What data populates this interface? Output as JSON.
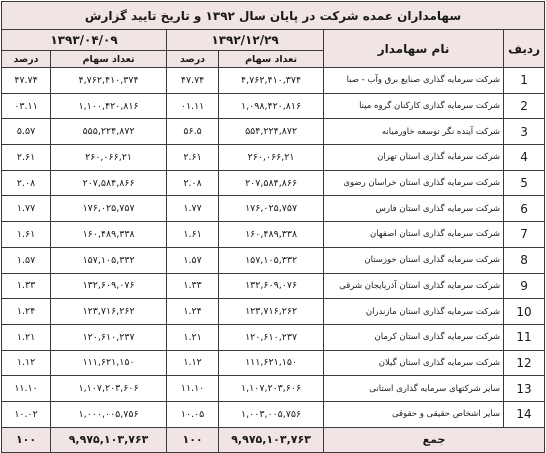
{
  "title": "سهامداران عمده شرکت در پایان سال ۱۳۹۲ و تاریخ تایید گزارش",
  "headers": {
    "row_no": "ردیف",
    "shareholder_name": "نام سهامدار",
    "date1": "۱۳۹۲/۱۲/۲۹",
    "date2": "۱۳۹۳/۰۴/۰۹",
    "shares": "تعداد سهام",
    "percent": "درصد"
  },
  "rows": [
    {
      "no": "1",
      "name": "شرکت سرمایه گذاری صنایع برق وآب - صبا",
      "shares1": "۴,۷۶۲,۴۱۰,۳۷۴",
      "pct1": "۴۷.۷۴",
      "shares2": "۴,۷۶۲,۴۱۰,۳۷۴",
      "pct2": "۴۷.۷۴"
    },
    {
      "no": "2",
      "name": "شرکت سرمایه گذاری کارکنان گروه مپنا",
      "shares1": "۱,۰۹۸,۴۲۰,۸۱۶",
      "pct1": "۰۱.۱۱",
      "shares2": "۱,۱۰۰,۴۲۰,۸۱۶",
      "pct2": "۰۳.۱۱"
    },
    {
      "no": "3",
      "name": "شرکت آینده نگر توسعه خاورمیانه",
      "shares1": "۵۵۴,۲۲۴,۸۷۲",
      "pct1": "۵۶.۵",
      "shares2": "۵۵۵,۲۲۴,۸۷۲",
      "pct2": "۵.۵۷"
    },
    {
      "no": "4",
      "name": "شرکت سرمایه گذاری استان تهران",
      "shares1": "۲۶۰,۰۶۶,۲۱",
      "pct1": "۲.۶۱",
      "shares2": "۲۶۰,۰۶۶,۲۱",
      "pct2": "۲.۶۱"
    },
    {
      "no": "5",
      "name": "شرکت سرمایه گذاری استان خراسان رضوی",
      "shares1": "۲۰۷,۵۸۴,۸۶۶",
      "pct1": "۲.۰۸",
      "shares2": "۲۰۷,۵۸۴,۸۶۶",
      "pct2": "۲.۰۸"
    },
    {
      "no": "6",
      "name": "شرکت سرمایه گذاری استان فارس",
      "shares1": "۱۷۶,۰۲۵,۷۵۷",
      "pct1": "۱.۷۷",
      "shares2": "۱۷۶,۰۲۵,۷۵۷",
      "pct2": "۱.۷۷"
    },
    {
      "no": "7",
      "name": "شرکت سرمایه گذاری استان اصفهان",
      "shares1": "۱۶۰,۴۸۹,۳۳۸",
      "pct1": "۱.۶۱",
      "shares2": "۱۶۰,۴۸۹,۳۳۸",
      "pct2": "۱.۶۱"
    },
    {
      "no": "8",
      "name": "شرکت سرمایه گذاری استان خوزستان",
      "shares1": "۱۵۷,۱۰۵,۳۳۲",
      "pct1": "۱.۵۷",
      "shares2": "۱۵۷,۱۰۵,۳۳۲",
      "pct2": "۱.۵۷"
    },
    {
      "no": "9",
      "name": "شرکت سرمایه گذاری استان آذربایجان شرقی",
      "shares1": "۱۳۲,۶۰۹,۰۷۶",
      "pct1": "۱.۳۳",
      "shares2": "۱۳۲,۶۰۹,۰۷۶",
      "pct2": "۱.۳۳"
    },
    {
      "no": "10",
      "name": "شرکت سرمایه گذاری استان مازندران",
      "shares1": "۱۲۳,۷۱۶,۲۶۲",
      "pct1": "۱.۲۴",
      "shares2": "۱۲۳,۷۱۶,۲۶۲",
      "pct2": "۱.۲۴"
    },
    {
      "no": "11",
      "name": "شرکت سرمایه گذاری استان کرمان",
      "shares1": "۱۲۰,۶۱۰,۲۳۷",
      "pct1": "۱.۲۱",
      "shares2": "۱۲۰,۶۱۰,۲۳۷",
      "pct2": "۱.۲۱"
    },
    {
      "no": "12",
      "name": "شرکت سرمایه گذاری استان گیلان",
      "shares1": "۱۱۱,۶۲۱,۱۵۰",
      "pct1": "۱.۱۲",
      "shares2": "۱۱۱,۶۲۱,۱۵۰",
      "pct2": "۱.۱۲"
    },
    {
      "no": "13",
      "name": "سایر شرکتهای سرمایه گذاری استانی",
      "shares1": "۱,۱۰۷,۲۰۳,۶۰۶",
      "pct1": "۱۱.۱۰",
      "shares2": "۱,۱۰۷,۲۰۳,۶۰۶",
      "pct2": "۱۱.۱۰"
    },
    {
      "no": "14",
      "name": "سایر اشخاص حقیقی و حقوقی",
      "shares1": "۱,۰۰۳,۰۰۵,۷۵۶",
      "pct1": "۱۰.۰۵",
      "shares2": "۱,۰۰۰,۰۰۵,۷۵۶",
      "pct2": "۱۰.۰۲"
    }
  ],
  "total": {
    "label": "جمع",
    "shares1": "۹,۹۷۵,۱۰۳,۷۶۳",
    "pct1": "۱۰۰",
    "shares2": "۹,۹۷۵,۱۰۳,۷۶۳",
    "pct2": "۱۰۰"
  }
}
